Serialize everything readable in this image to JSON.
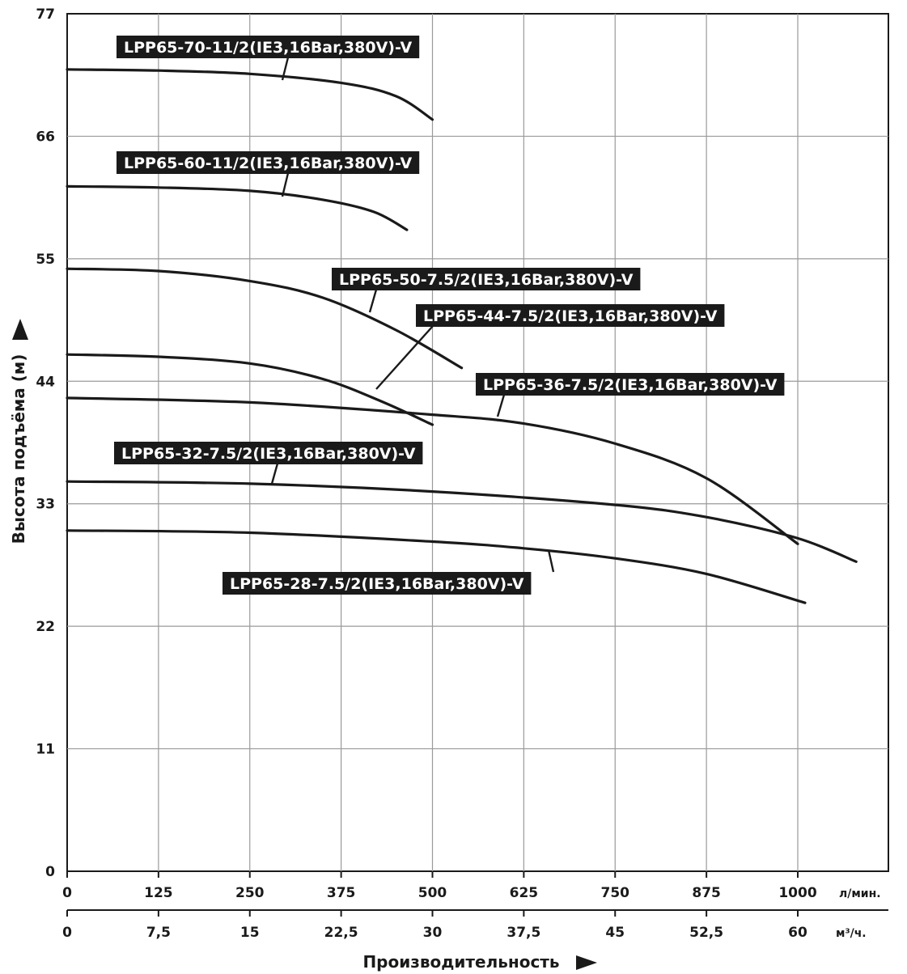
{
  "chart_data": {
    "type": "line",
    "title": "",
    "xlabel": "Производительность",
    "ylabel": "Высота подъёма (м)",
    "x_primary": {
      "unit": "л/мин.",
      "range": [
        0,
        1000
      ],
      "ticks": [
        "0",
        "125",
        "250",
        "375",
        "500",
        "625",
        "750",
        "875",
        "1000"
      ]
    },
    "x_secondary": {
      "unit": "м³/ч.",
      "ticks": [
        "0",
        "7,5",
        "15",
        "22,5",
        "30",
        "37,5",
        "45",
        "52,5",
        "60"
      ]
    },
    "y_axis": {
      "range": [
        0,
        77
      ],
      "ticks": [
        "0",
        "11",
        "22",
        "33",
        "44",
        "55",
        "66",
        "77"
      ]
    },
    "grid": true,
    "series": [
      {
        "name": "LPP65-70-11/2(IE3,16Bar,380V)-V",
        "points": [
          [
            0,
            72.0
          ],
          [
            125,
            71.9
          ],
          [
            250,
            71.6
          ],
          [
            375,
            70.8
          ],
          [
            450,
            69.6
          ],
          [
            500,
            67.5
          ]
        ]
      },
      {
        "name": "LPP65-60-11/2(IE3,16Bar,380V)-V",
        "points": [
          [
            0,
            61.5
          ],
          [
            125,
            61.4
          ],
          [
            250,
            61.1
          ],
          [
            350,
            60.3
          ],
          [
            420,
            59.2
          ],
          [
            465,
            57.6
          ]
        ]
      },
      {
        "name": "LPP65-50-7.5/2(IE3,16Bar,380V)-V",
        "points": [
          [
            0,
            54.1
          ],
          [
            125,
            53.9
          ],
          [
            250,
            53.0
          ],
          [
            350,
            51.5
          ],
          [
            450,
            48.6
          ],
          [
            540,
            45.2
          ]
        ]
      },
      {
        "name": "LPP65-44-7.5/2(IE3,16Bar,380V)-V",
        "points": [
          [
            0,
            46.4
          ],
          [
            125,
            46.2
          ],
          [
            250,
            45.6
          ],
          [
            350,
            44.2
          ],
          [
            430,
            42.2
          ],
          [
            500,
            40.1
          ]
        ]
      },
      {
        "name": "LPP65-36-7.5/2(IE3,16Bar,380V)-V",
        "points": [
          [
            0,
            42.5
          ],
          [
            250,
            42.1
          ],
          [
            500,
            41.0
          ],
          [
            625,
            40.2
          ],
          [
            750,
            38.4
          ],
          [
            875,
            35.3
          ],
          [
            1000,
            29.4
          ]
        ]
      },
      {
        "name": "LPP65-32-7.5/2(IE3,16Bar,380V)-V",
        "points": [
          [
            0,
            35.0
          ],
          [
            250,
            34.8
          ],
          [
            500,
            34.1
          ],
          [
            750,
            32.9
          ],
          [
            875,
            31.8
          ],
          [
            1000,
            29.9
          ],
          [
            1080,
            27.8
          ]
        ]
      },
      {
        "name": "LPP65-28-7.5/2(IE3,16Bar,380V)-V",
        "points": [
          [
            0,
            30.6
          ],
          [
            250,
            30.4
          ],
          [
            500,
            29.6
          ],
          [
            625,
            29.0
          ],
          [
            750,
            28.1
          ],
          [
            875,
            26.7
          ],
          [
            1010,
            24.1
          ]
        ]
      }
    ]
  }
}
